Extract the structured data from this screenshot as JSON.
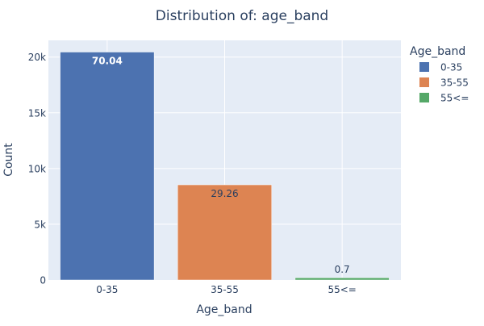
{
  "chart_data": {
    "type": "bar",
    "title": "Distribution of: age_band",
    "xlabel": "Age_band",
    "ylabel": "Count",
    "categories": [
      "0-35",
      "35-55",
      "55<="
    ],
    "values": [
      20450,
      8540,
      200
    ],
    "data_labels": [
      "70.04",
      "29.26",
      "0.7"
    ],
    "colors": [
      "#4c72b0",
      "#dd8452",
      "#55a868"
    ],
    "ylim": [
      0,
      21500
    ],
    "y_ticks": [
      {
        "value": 0,
        "label": "0"
      },
      {
        "value": 5000,
        "label": "5k"
      },
      {
        "value": 10000,
        "label": "10k"
      },
      {
        "value": 15000,
        "label": "15k"
      },
      {
        "value": 20000,
        "label": "20k"
      }
    ],
    "legend": {
      "title": "Age_band",
      "placement": "top-right",
      "items": [
        "0-35",
        "35-55",
        "55<="
      ]
    },
    "grid": true,
    "plot_background": "#e5ecf6"
  }
}
